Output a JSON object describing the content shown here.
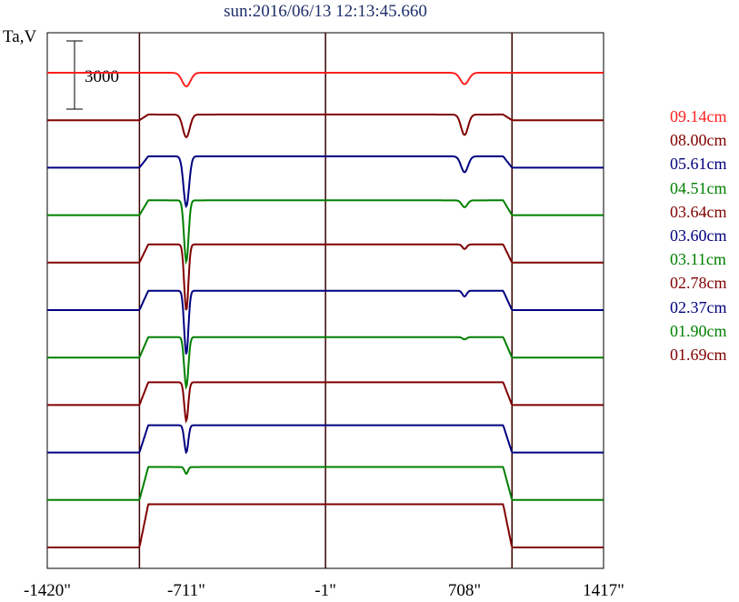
{
  "title": "sun:2016/06/13 12:13:45.660",
  "ylabel": "Ta,V",
  "scale_label": "3000",
  "x_ticks": [
    "-1420\"",
    "-711\"",
    "-1\"",
    "708\"",
    "1417\""
  ],
  "legend": [
    {
      "label": "09.14cm",
      "color": "#ff2020"
    },
    {
      "label": "08.00cm",
      "color": "#800000"
    },
    {
      "label": "05.61cm",
      "color": "#000080"
    },
    {
      "label": "04.51cm",
      "color": "#008000"
    },
    {
      "label": "03.64cm",
      "color": "#800000"
    },
    {
      "label": "03.60cm",
      "color": "#000080"
    },
    {
      "label": "03.11cm",
      "color": "#008000"
    },
    {
      "label": "02.78cm",
      "color": "#800000"
    },
    {
      "label": "02.37cm",
      "color": "#000080"
    },
    {
      "label": "01.90cm",
      "color": "#008000"
    },
    {
      "label": "01.69cm",
      "color": "#800000"
    }
  ],
  "chart_data": {
    "type": "line",
    "title": "sun:2016/06/13 12:13:45.660",
    "ylabel": "Ta,V",
    "x_unit": "arcsec",
    "xlim": [
      -1420,
      1417
    ],
    "vertical_lines_x": [
      -950,
      -1,
      950
    ],
    "scale_bar_ta": 3000,
    "series": [
      {
        "name": "09.14cm",
        "color": "#ff2020",
        "baseline_ta": 0,
        "plateau_ta": 0,
        "dips": [
          {
            "x": -711,
            "depth_ta": 600,
            "width": 30
          },
          {
            "x": 708,
            "depth_ta": 500,
            "width": 30
          }
        ]
      },
      {
        "name": "08.00cm",
        "color": "#800000",
        "baseline_ta": 0,
        "plateau_ta": 250,
        "dips": [
          {
            "x": -711,
            "depth_ta": 1000,
            "width": 25
          },
          {
            "x": 708,
            "depth_ta": 900,
            "width": 25
          }
        ]
      },
      {
        "name": "05.61cm",
        "color": "#000080",
        "baseline_ta": 0,
        "plateau_ta": 500,
        "dips": [
          {
            "x": -711,
            "depth_ta": 2200,
            "width": 20
          },
          {
            "x": 708,
            "depth_ta": 700,
            "width": 25
          }
        ]
      },
      {
        "name": "04.51cm",
        "color": "#008000",
        "baseline_ta": 0,
        "plateau_ta": 650,
        "dips": [
          {
            "x": -711,
            "depth_ta": 2700,
            "width": 16
          },
          {
            "x": 708,
            "depth_ta": 300,
            "width": 20
          }
        ]
      },
      {
        "name": "03.64cm",
        "color": "#800000",
        "baseline_ta": 0,
        "plateau_ta": 800,
        "dips": [
          {
            "x": -711,
            "depth_ta": 2900,
            "width": 15
          },
          {
            "x": 708,
            "depth_ta": 200,
            "width": 15
          }
        ]
      },
      {
        "name": "03.60cm",
        "color": "#000080",
        "baseline_ta": 0,
        "plateau_ta": 850,
        "dips": [
          {
            "x": -711,
            "depth_ta": 2800,
            "width": 15
          },
          {
            "x": 708,
            "depth_ta": 250,
            "width": 15
          }
        ]
      },
      {
        "name": "03.11cm",
        "color": "#008000",
        "baseline_ta": 0,
        "plateau_ta": 900,
        "dips": [
          {
            "x": -711,
            "depth_ta": 2200,
            "width": 15
          },
          {
            "x": 708,
            "depth_ta": 100,
            "width": 15
          }
        ]
      },
      {
        "name": "02.78cm",
        "color": "#800000",
        "baseline_ta": 0,
        "plateau_ta": 1000,
        "dips": [
          {
            "x": -711,
            "depth_ta": 1700,
            "width": 14
          }
        ]
      },
      {
        "name": "02.37cm",
        "color": "#000080",
        "baseline_ta": 0,
        "plateau_ta": 1200,
        "dips": [
          {
            "x": -711,
            "depth_ta": 1200,
            "width": 14
          }
        ]
      },
      {
        "name": "01.90cm",
        "color": "#008000",
        "baseline_ta": 0,
        "plateau_ta": 1450,
        "dips": [
          {
            "x": -711,
            "depth_ta": 300,
            "width": 12
          }
        ]
      },
      {
        "name": "01.69cm",
        "color": "#800000",
        "baseline_ta": 0,
        "plateau_ta": 1900,
        "dips": []
      }
    ]
  }
}
